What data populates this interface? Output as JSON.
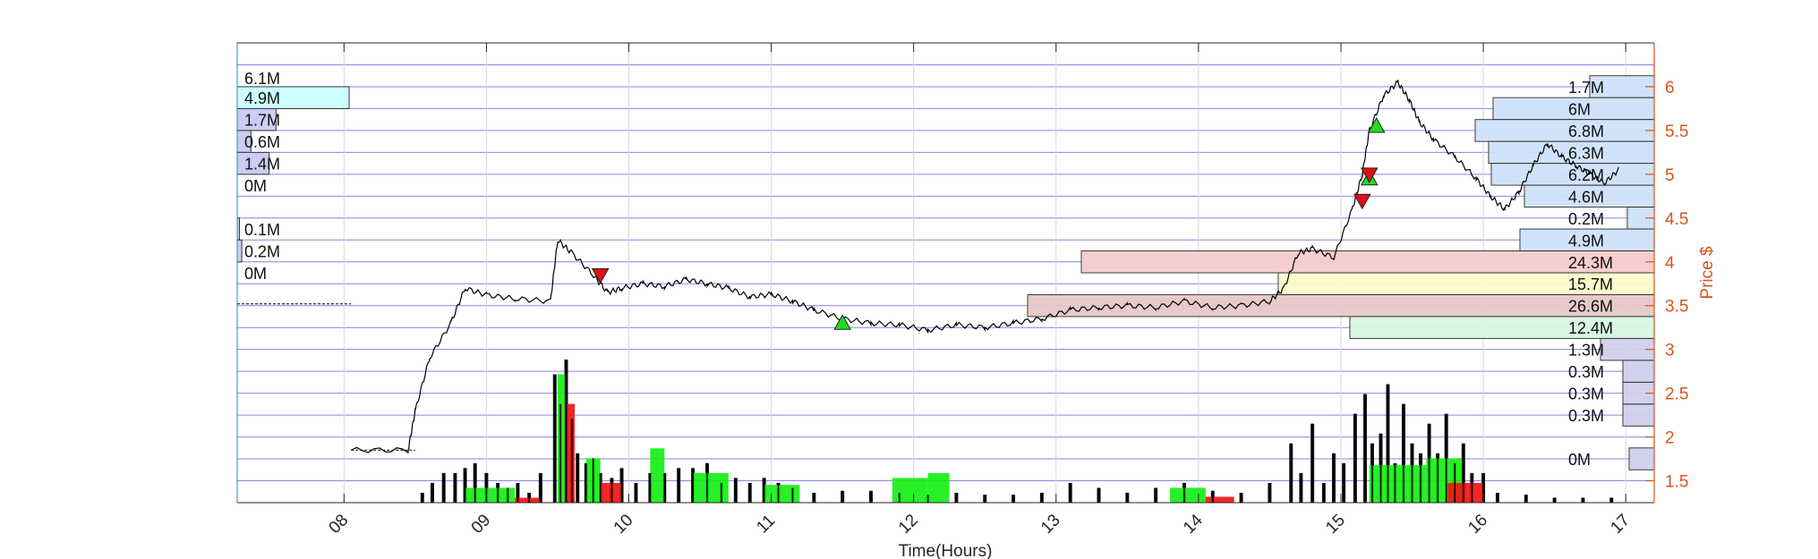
{
  "chart_data": {
    "type": "line",
    "xlabel": "Time(Hours)",
    "ylabel": "Price $",
    "xlim": [
      7.25,
      17.2
    ],
    "ylim": [
      1.25,
      6.5
    ],
    "x_ticks": [
      8,
      9,
      10,
      11,
      12,
      13,
      14,
      15,
      16,
      17
    ],
    "x_tick_labels": [
      "08",
      "09",
      "10",
      "11",
      "12",
      "13",
      "14",
      "15",
      "16",
      "17"
    ],
    "y_ticks": [
      1.5,
      2,
      2.5,
      3,
      3.5,
      4,
      4.5,
      5,
      5.5,
      6
    ],
    "y_tick_labels": [
      "1.5",
      "2",
      "2.5",
      "3",
      "3.5",
      "4",
      "4.5",
      "5",
      "5.5",
      "6"
    ],
    "grid": true,
    "colors": {
      "axis_right": "#d9541a",
      "price_line": "#000000",
      "grid_band": "#7272e0",
      "buy_marker": "#22dd22",
      "sell_marker": "#dd1111",
      "volume_up": "#11ee11",
      "volume_down": "#ee1111"
    },
    "price_series": {
      "name": "",
      "x": [
        8.05,
        8.45,
        8.5,
        8.6,
        8.75,
        8.85,
        9.0,
        9.2,
        9.45,
        9.5,
        9.6,
        9.75,
        9.85,
        9.95,
        10.1,
        10.25,
        10.4,
        10.55,
        10.7,
        10.85,
        11.0,
        11.15,
        11.3,
        11.5,
        11.7,
        11.9,
        12.1,
        12.3,
        12.5,
        12.7,
        12.9,
        13.1,
        13.3,
        13.5,
        13.7,
        13.9,
        14.1,
        14.3,
        14.5,
        14.6,
        14.7,
        14.8,
        14.95,
        15.08,
        15.15,
        15.2,
        15.3,
        15.4,
        15.48,
        15.55,
        15.65,
        15.8,
        15.95,
        16.05,
        16.15,
        16.25,
        16.35,
        16.45,
        16.55,
        16.65,
        16.75,
        16.85,
        16.95
      ],
      "y": [
        1.85,
        1.85,
        2.3,
        2.9,
        3.3,
        3.7,
        3.62,
        3.58,
        3.55,
        4.25,
        4.1,
        3.85,
        3.65,
        3.7,
        3.75,
        3.72,
        3.8,
        3.75,
        3.7,
        3.6,
        3.63,
        3.55,
        3.45,
        3.35,
        3.3,
        3.28,
        3.22,
        3.28,
        3.25,
        3.3,
        3.35,
        3.45,
        3.48,
        3.5,
        3.48,
        3.55,
        3.48,
        3.5,
        3.55,
        3.7,
        4.1,
        4.15,
        4.05,
        4.6,
        5.0,
        5.5,
        5.9,
        6.05,
        5.85,
        5.6,
        5.4,
        5.2,
        4.95,
        4.75,
        4.6,
        4.8,
        5.1,
        5.35,
        5.2,
        5.1,
        5.0,
        4.9,
        5.05
      ]
    },
    "pre_market_lines": [
      {
        "x": [
          7.25,
          8.05
        ],
        "y": 3.52
      },
      {
        "x": [
          8.05,
          8.5
        ],
        "y": 1.85
      }
    ],
    "buy_markers": [
      {
        "x": 11.5,
        "y": 3.3
      },
      {
        "x": 15.2,
        "y": 4.95
      },
      {
        "x": 15.25,
        "y": 5.55
      }
    ],
    "sell_markers": [
      {
        "x": 9.8,
        "y": 3.85
      },
      {
        "x": 15.15,
        "y": 4.7
      },
      {
        "x": 15.2,
        "y": 5.0
      }
    ],
    "volume_bars": {
      "x": [
        8.55,
        8.62,
        8.7,
        8.78,
        8.85,
        8.92,
        9.0,
        9.08,
        9.15,
        9.22,
        9.3,
        9.38,
        9.48,
        9.52,
        9.56,
        9.6,
        9.64,
        9.7,
        9.75,
        9.8,
        9.88,
        9.95,
        10.05,
        10.15,
        10.25,
        10.35,
        10.45,
        10.55,
        10.65,
        10.75,
        10.85,
        10.95,
        11.05,
        11.15,
        11.3,
        11.5,
        11.7,
        11.9,
        12.1,
        12.3,
        12.5,
        12.7,
        12.9,
        13.1,
        13.3,
        13.5,
        13.7,
        13.9,
        14.1,
        14.3,
        14.5,
        14.65,
        14.72,
        14.8,
        14.88,
        14.95,
        15.02,
        15.1,
        15.17,
        15.22,
        15.28,
        15.33,
        15.38,
        15.44,
        15.5,
        15.56,
        15.62,
        15.68,
        15.74,
        15.8,
        15.86,
        15.92,
        16.0,
        16.1,
        16.3,
        16.5,
        16.7,
        16.9
      ],
      "values": [
        0.1,
        0.2,
        0.3,
        0.3,
        0.35,
        0.4,
        0.3,
        0.2,
        0.15,
        0.2,
        0.1,
        0.3,
        1.3,
        1.0,
        1.45,
        0.85,
        0.5,
        0.4,
        0.45,
        0.3,
        0.25,
        0.35,
        0.2,
        0.3,
        0.3,
        0.35,
        0.35,
        0.4,
        0.2,
        0.25,
        0.2,
        0.25,
        0.2,
        0.15,
        0.1,
        0.12,
        0.12,
        0.1,
        0.08,
        0.1,
        0.08,
        0.08,
        0.1,
        0.2,
        0.15,
        0.1,
        0.15,
        0.2,
        0.12,
        0.1,
        0.2,
        0.6,
        0.3,
        0.8,
        0.2,
        0.5,
        0.4,
        0.9,
        1.1,
        0.6,
        0.7,
        1.2,
        0.4,
        1.0,
        0.6,
        0.5,
        0.8,
        0.5,
        0.9,
        0.4,
        0.6,
        0.3,
        0.3,
        0.1,
        0.08,
        0.05,
        0.05,
        0.05
      ]
    },
    "volume_profile_left": [
      {
        "price": 6.1,
        "label": "6.1M"
      },
      {
        "price": 5.875,
        "label": "4.9M"
      },
      {
        "price": 5.625,
        "label": "1.7M"
      },
      {
        "price": 5.375,
        "label": "0.6M"
      },
      {
        "price": 5.125,
        "label": "1.4M"
      },
      {
        "price": 4.875,
        "label": "0M"
      },
      {
        "price": 4.375,
        "label": "0.1M"
      },
      {
        "price": 4.125,
        "label": "0.2M"
      },
      {
        "price": 3.875,
        "label": "0M"
      }
    ],
    "volume_profile_right": [
      {
        "price": 6.0,
        "label": "1.7M"
      },
      {
        "price": 5.75,
        "label": "6M"
      },
      {
        "price": 5.5,
        "label": "6.8M"
      },
      {
        "price": 5.25,
        "label": "6.3M"
      },
      {
        "price": 5.0,
        "label": "6.2M"
      },
      {
        "price": 4.75,
        "label": "4.6M"
      },
      {
        "price": 4.5,
        "label": "0.2M"
      },
      {
        "price": 4.25,
        "label": "4.9M"
      },
      {
        "price": 4.0,
        "label": "24.3M"
      },
      {
        "price": 3.75,
        "label": "15.7M"
      },
      {
        "price": 3.5,
        "label": "26.6M"
      },
      {
        "price": 3.25,
        "label": "12.4M"
      },
      {
        "price": 3.0,
        "label": "1.3M"
      },
      {
        "price": 2.75,
        "label": "0.3M"
      },
      {
        "price": 2.5,
        "label": "0.3M"
      },
      {
        "price": 2.25,
        "label": "0.3M"
      },
      {
        "price": 1.75,
        "label": "0M"
      }
    ]
  }
}
